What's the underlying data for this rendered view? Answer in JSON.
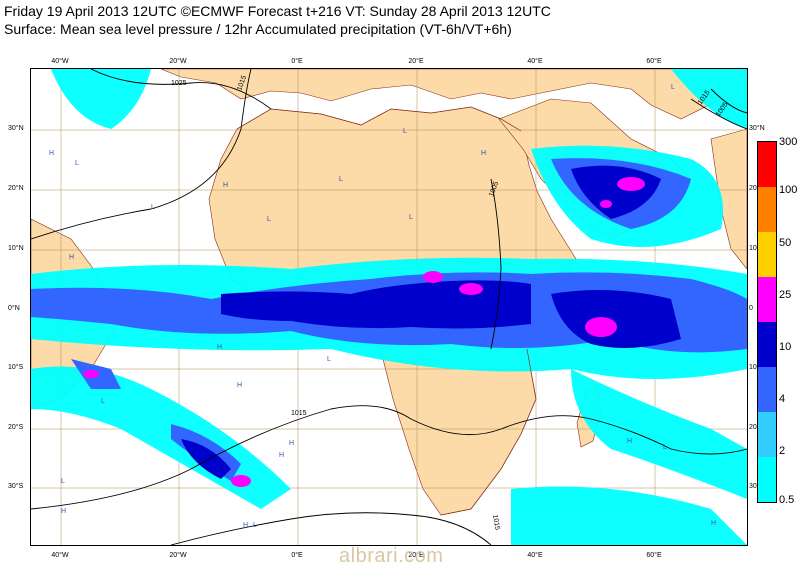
{
  "header": {
    "title": "Friday 19 April 2013 12UTC ©ECMWF Forecast t+216 VT: Sunday 28 April 2013 12UTC",
    "subtitle": "Surface: Mean sea level pressure / 12hr Accumulated precipitation (VT-6h/VT+6h)"
  },
  "map": {
    "lon_ticks": [
      "40°W",
      "20°W",
      "0°E",
      "20°E",
      "40°E",
      "60°E"
    ],
    "lat_ticks_left": [
      "30°N",
      "20°N",
      "10°N",
      "0°N",
      "10°S",
      "20°S",
      "30°S"
    ],
    "lat_ticks_right": [
      "30°N",
      "20",
      "10",
      "0",
      "10",
      "20",
      "30"
    ],
    "isobar_labels": [
      "1025",
      "1015",
      "1005",
      "1015",
      "1015",
      "1015",
      "1005"
    ],
    "pressure_centers": [
      "H",
      "L",
      "H",
      "L",
      "L",
      "H",
      "L",
      "H",
      "L",
      "H",
      "H",
      "H",
      "L",
      "L",
      "L",
      "H",
      "H",
      "L",
      "L",
      "H",
      "L",
      "H",
      "H",
      "L"
    ],
    "colors": {
      "land": "#fcdba8",
      "ocean": "#ffffff",
      "graticule": "#b08b5a",
      "coast": "#8a2b1a",
      "isobar": "#000000"
    }
  },
  "legend": {
    "labels": [
      "300",
      "100",
      "50",
      "25",
      "10",
      "4",
      "2",
      "0.5"
    ],
    "colors": [
      "#ff0000",
      "#ff8000",
      "#ffd000",
      "#ff00ff",
      "#0000cc",
      "#3366ff",
      "#33ccff",
      "#00ffff"
    ]
  },
  "watermark": "albrari.com"
}
